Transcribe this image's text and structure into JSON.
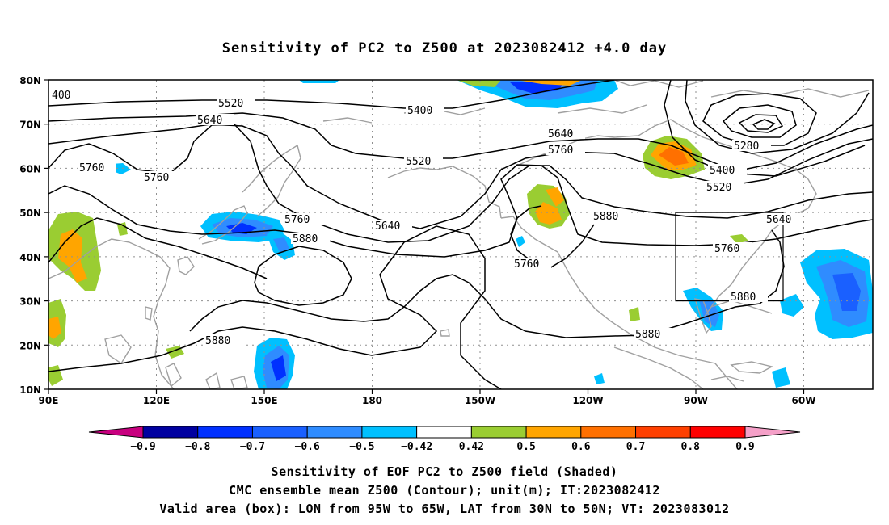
{
  "title": "Sensitivity of PC2 to Z500 at 2023082412 +4.0 day",
  "lat_labels": [
    "80N",
    "70N",
    "60N",
    "50N",
    "40N",
    "30N",
    "20N",
    "10N"
  ],
  "lon_labels": [
    "90E",
    "120E",
    "150E",
    "180",
    "150W",
    "120W",
    "90W",
    "60W"
  ],
  "contour_labels": [
    "400",
    "5520",
    "5640",
    "5400",
    "5760",
    "5760",
    "5520",
    "5640",
    "5760",
    "5280",
    "5400",
    "5520",
    "5760",
    "5640",
    "5880",
    "5880",
    "5760",
    "5880",
    "5640",
    "5760",
    "5880",
    "5880",
    "5880"
  ],
  "colorbar": {
    "labels": [
      "-0.9",
      "-0.8",
      "-0.7",
      "-0.6",
      "-0.5",
      "-0.42",
      "0.42",
      "0.5",
      "0.6",
      "0.7",
      "0.8",
      "0.9"
    ],
    "colors": [
      "#0000a0",
      "#0030ff",
      "#1a60ff",
      "#2f8cff",
      "#00c0ff",
      "#ffffff",
      "#9acd32",
      "#ffa500",
      "#ff7000",
      "#ff4000",
      "#ff0000"
    ],
    "low_color": "#c8007f",
    "high_color": "#f5a0c8"
  },
  "box": {
    "lon_from": "95W",
    "lon_to": "65W",
    "lat_from": "30N",
    "lat_to": "50N"
  },
  "captions": [
    "Sensitivity of EOF PC2 to Z500 field (Shaded)",
    "CMC ensemble mean Z500 (Contour); unit(m); IT:2023082412",
    "Valid area (box): LON from 95W to 65W, LAT from 30N to 50N; VT: 2023083012"
  ]
}
